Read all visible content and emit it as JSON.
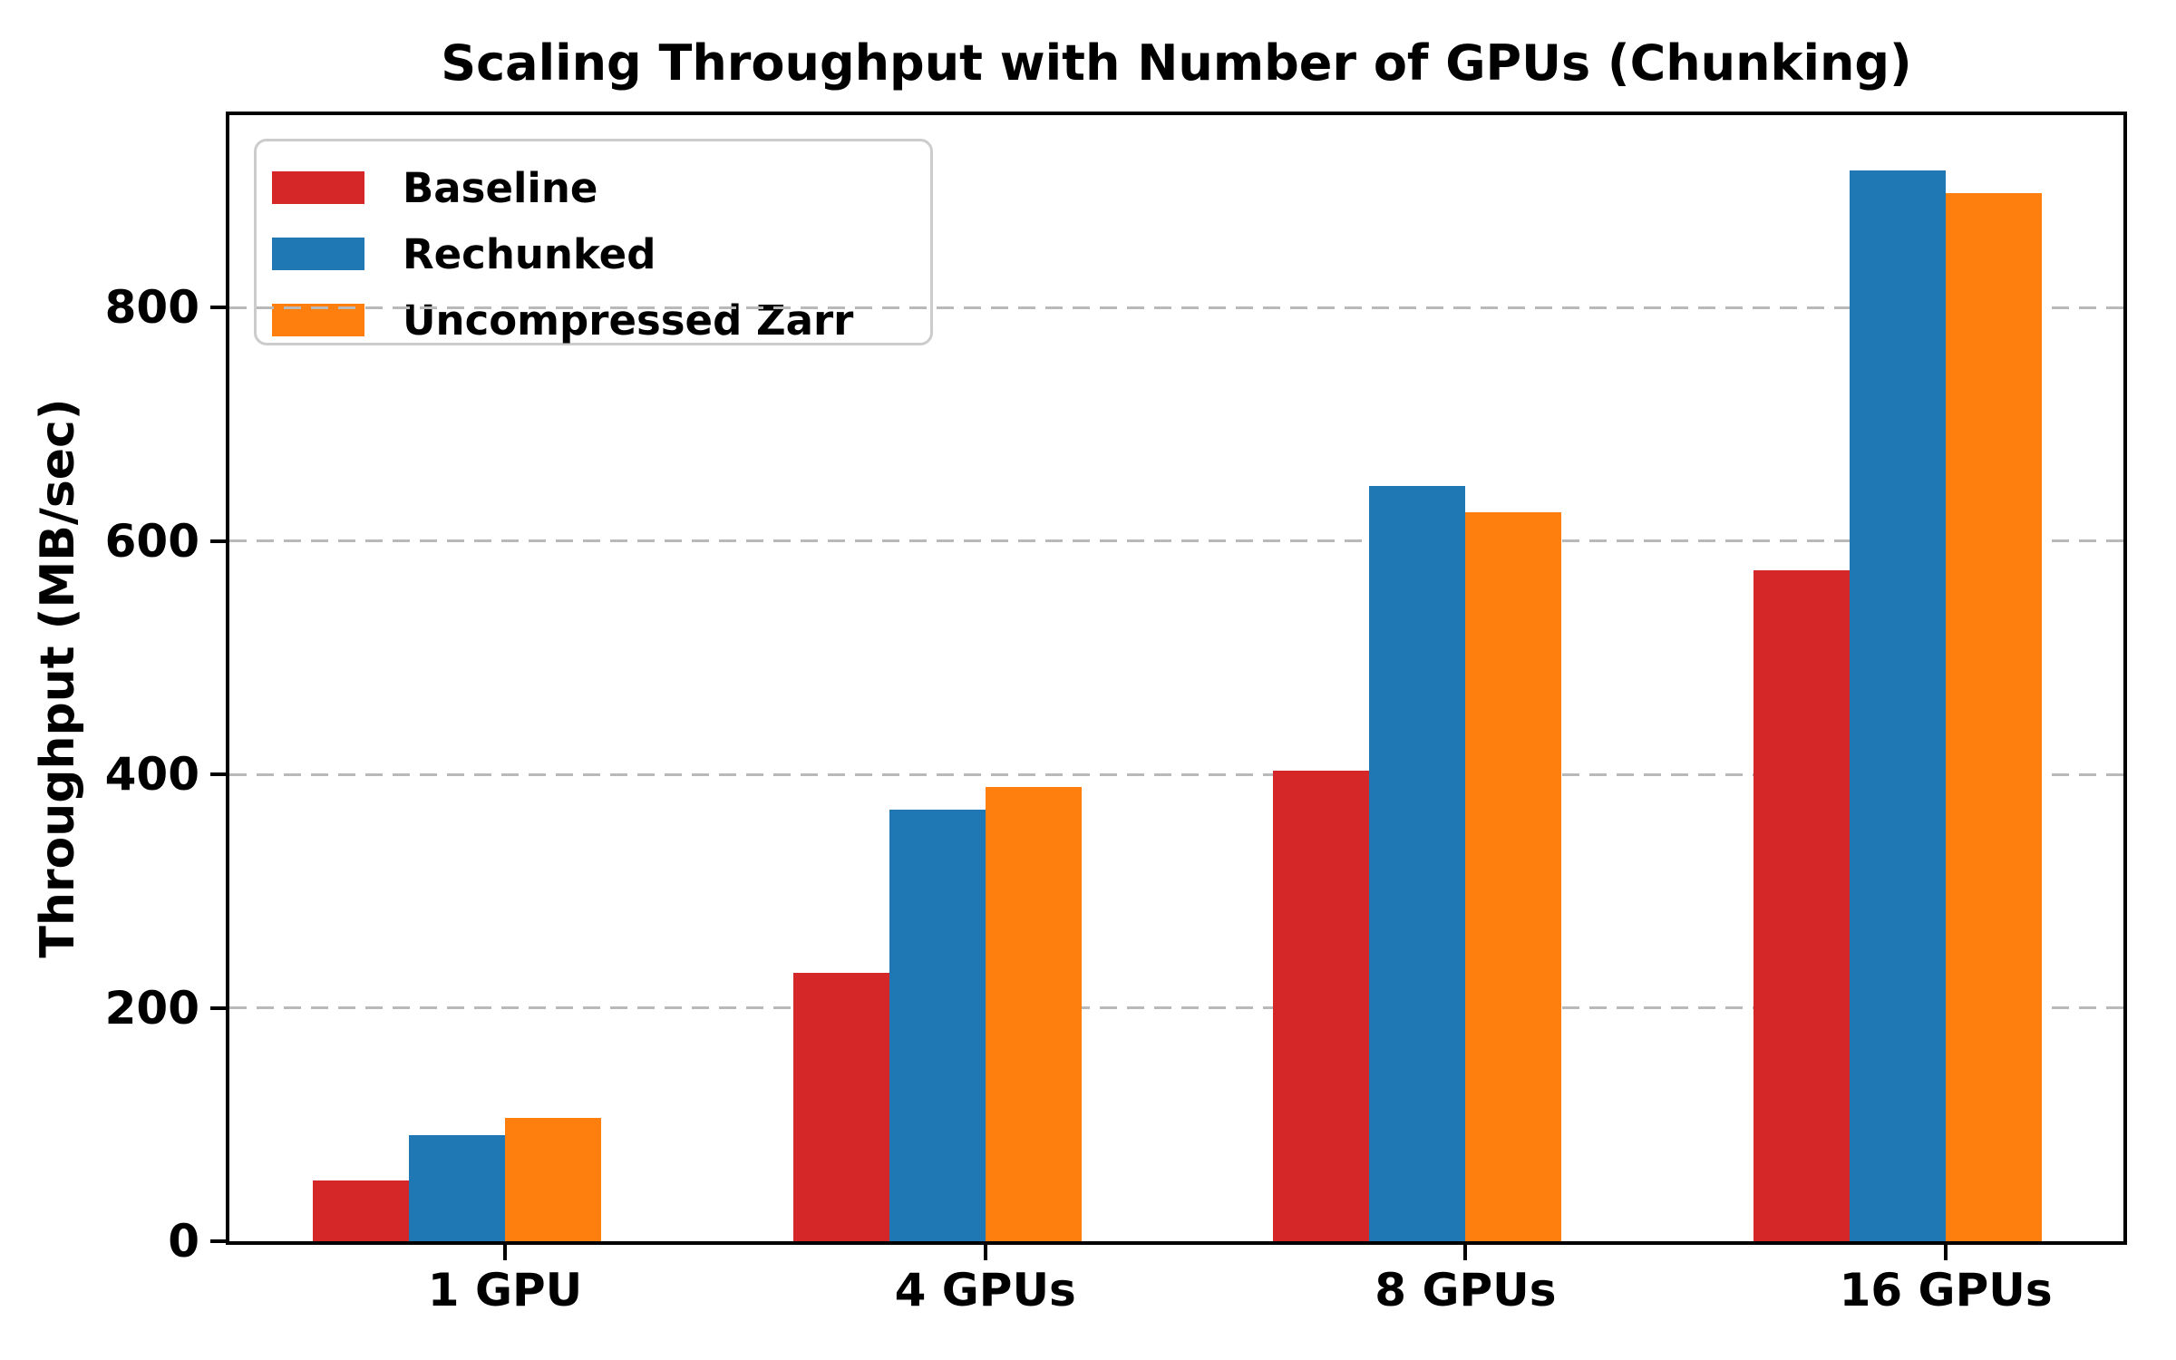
{
  "chart_data": {
    "type": "bar",
    "title": "Scaling Throughput with Number of GPUs (Chunking)",
    "xlabel": "",
    "ylabel": "Throughput (MB/sec)",
    "categories": [
      "1 GPU",
      "4 GPUs",
      "8 GPUs",
      "16 GPUs"
    ],
    "series": [
      {
        "name": "Baseline",
        "color": "#d62728",
        "values": [
          52,
          230,
          403,
          575
        ]
      },
      {
        "name": "Rechunked",
        "color": "#1f77b4",
        "values": [
          91,
          370,
          647,
          918
        ]
      },
      {
        "name": "Uncompressed Zarr",
        "color": "#ff7f0e",
        "values": [
          106,
          389,
          625,
          898
        ]
      }
    ],
    "ylim": [
      0,
      965
    ],
    "yticks": [
      0,
      200,
      400,
      600,
      800
    ],
    "grid": true,
    "grid_style": "dashed",
    "legend_position": "upper left",
    "bar_value_unit": "MB/sec"
  }
}
